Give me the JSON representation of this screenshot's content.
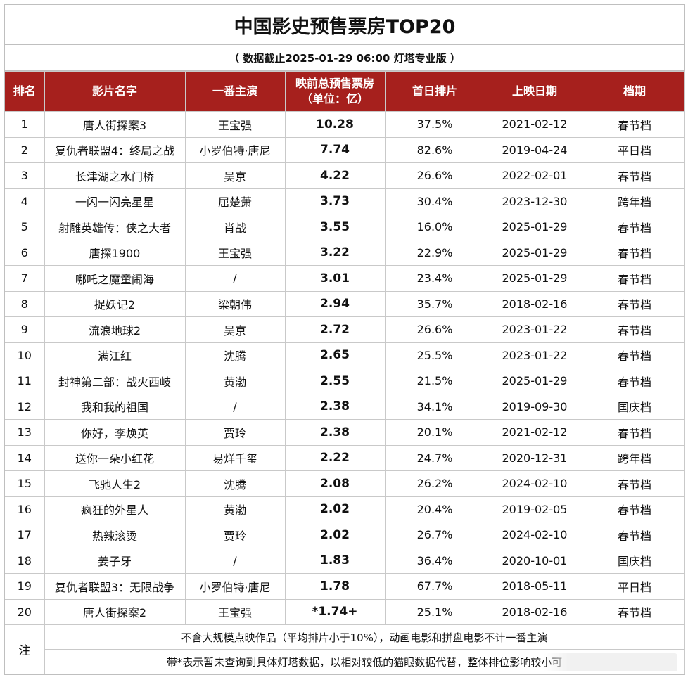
{
  "title": "中国影史预售票房TOP20",
  "subtitle": "（ 数据截止2025-01-29 06:00 灯塔专业版 ）",
  "columns": [
    "排名",
    "影片名字",
    "一番主演",
    "映前总预售票房\n（单位：亿）",
    "首日排片",
    "上映日期",
    "档期"
  ],
  "rows": [
    {
      "rank": "1",
      "film": "唐人街探案3",
      "lead": "王宝强",
      "presale": "10.28",
      "share": "37.5%",
      "date": "2021-02-12",
      "period": "春节档"
    },
    {
      "rank": "2",
      "film": "复仇者联盟4：终局之战",
      "lead": "小罗伯特·唐尼",
      "presale": "7.74",
      "share": "82.6%",
      "date": "2019-04-24",
      "period": "平日档"
    },
    {
      "rank": "3",
      "film": "长津湖之水门桥",
      "lead": "吴京",
      "presale": "4.22",
      "share": "26.6%",
      "date": "2022-02-01",
      "period": "春节档"
    },
    {
      "rank": "4",
      "film": "一闪一闪亮星星",
      "lead": "屈楚萧",
      "presale": "3.73",
      "share": "30.4%",
      "date": "2023-12-30",
      "period": "跨年档"
    },
    {
      "rank": "5",
      "film": "射雕英雄传：侠之大者",
      "lead": "肖战",
      "presale": "3.55",
      "share": "16.0%",
      "date": "2025-01-29",
      "period": "春节档"
    },
    {
      "rank": "6",
      "film": "唐探1900",
      "lead": "王宝强",
      "presale": "3.22",
      "share": "22.9%",
      "date": "2025-01-29",
      "period": "春节档"
    },
    {
      "rank": "7",
      "film": "哪吒之魔童闹海",
      "lead": "/",
      "presale": "3.01",
      "share": "23.4%",
      "date": "2025-01-29",
      "period": "春节档"
    },
    {
      "rank": "8",
      "film": "捉妖记2",
      "lead": "梁朝伟",
      "presale": "2.94",
      "share": "35.7%",
      "date": "2018-02-16",
      "period": "春节档"
    },
    {
      "rank": "9",
      "film": "流浪地球2",
      "lead": "吴京",
      "presale": "2.72",
      "share": "26.6%",
      "date": "2023-01-22",
      "period": "春节档"
    },
    {
      "rank": "10",
      "film": "满江红",
      "lead": "沈腾",
      "presale": "2.65",
      "share": "25.5%",
      "date": "2023-01-22",
      "period": "春节档"
    },
    {
      "rank": "11",
      "film": "封神第二部：战火西岐",
      "lead": "黄渤",
      "presale": "2.55",
      "share": "21.5%",
      "date": "2025-01-29",
      "period": "春节档"
    },
    {
      "rank": "12",
      "film": "我和我的祖国",
      "lead": "/",
      "presale": "2.38",
      "share": "34.1%",
      "date": "2019-09-30",
      "period": "国庆档"
    },
    {
      "rank": "13",
      "film": "你好，李焕英",
      "lead": "贾玲",
      "presale": "2.38",
      "share": "20.1%",
      "date": "2021-02-12",
      "period": "春节档"
    },
    {
      "rank": "14",
      "film": "送你一朵小红花",
      "lead": "易烊千玺",
      "presale": "2.22",
      "share": "24.7%",
      "date": "2020-12-31",
      "period": "跨年档"
    },
    {
      "rank": "15",
      "film": "飞驰人生2",
      "lead": "沈腾",
      "presale": "2.08",
      "share": "26.2%",
      "date": "2024-02-10",
      "period": "春节档"
    },
    {
      "rank": "16",
      "film": "疯狂的外星人",
      "lead": "黄渤",
      "presale": "2.02",
      "share": "20.4%",
      "date": "2019-02-05",
      "period": "春节档"
    },
    {
      "rank": "17",
      "film": "热辣滚烫",
      "lead": "贾玲",
      "presale": "2.02",
      "share": "26.7%",
      "date": "2024-02-10",
      "period": "春节档"
    },
    {
      "rank": "18",
      "film": "姜子牙",
      "lead": "/",
      "presale": "1.83",
      "share": "36.4%",
      "date": "2020-10-01",
      "period": "国庆档"
    },
    {
      "rank": "19",
      "film": "复仇者联盟3：无限战争",
      "lead": "小罗伯特·唐尼",
      "presale": "1.78",
      "share": "67.7%",
      "date": "2018-05-11",
      "period": "平日档"
    },
    {
      "rank": "20",
      "film": "唐人街探案2",
      "lead": "王宝强",
      "presale": "*1.74+",
      "share": "25.1%",
      "date": "2018-02-16",
      "period": "春节档"
    }
  ],
  "notes": {
    "label": "注",
    "lines": [
      "不含大规模点映作品（平均排片小于10%），动画电影和拼盘电影不计一番主演",
      "带*表示暂未查询到具体灯塔数据，以相对较低的猫眼数据代替，整体排位影响较小可"
    ]
  },
  "colors": {
    "header_bg": "#a6201d",
    "header_text": "#ffffff",
    "grid": "#c9c9c9"
  }
}
